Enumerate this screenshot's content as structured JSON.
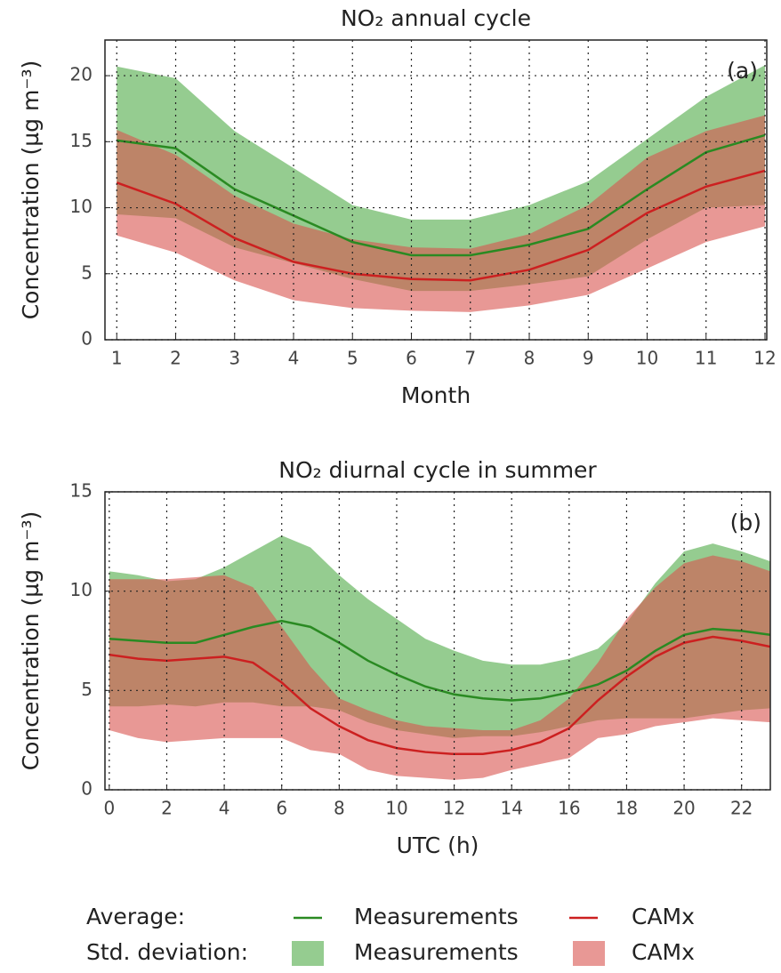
{
  "chart_data": [
    {
      "type": "line",
      "title": "NO₂ annual cycle",
      "x_label": "Month",
      "y_label": "Concentration (µg m⁻³)",
      "annotation": "(a)",
      "x": [
        1,
        2,
        3,
        4,
        5,
        6,
        7,
        8,
        9,
        10,
        11,
        12
      ],
      "xlim": [
        0.8,
        12.03
      ],
      "xticks": [
        1,
        2,
        3,
        4,
        5,
        6,
        7,
        8,
        9,
        10,
        11,
        12
      ],
      "ylim": [
        0,
        22.7
      ],
      "yticks": [
        0,
        5,
        10,
        15,
        20
      ],
      "grid": true,
      "series": [
        {
          "name": "Measurements",
          "color": "#2a8a22",
          "band_color": "#5cb055",
          "values": [
            15.1,
            14.5,
            11.4,
            9.4,
            7.4,
            6.4,
            6.4,
            7.2,
            8.4,
            11.4,
            14.2,
            15.5
          ],
          "std": [
            5.6,
            5.3,
            4.4,
            3.6,
            2.8,
            2.7,
            2.7,
            3.0,
            3.6,
            3.8,
            4.2,
            5.3
          ]
        },
        {
          "name": "CAMx",
          "color": "#cc2020",
          "band_color": "#d9534f",
          "values": [
            11.9,
            10.3,
            7.7,
            5.9,
            5.0,
            4.6,
            4.5,
            5.3,
            6.8,
            9.6,
            11.6,
            12.8
          ],
          "std": [
            4.0,
            3.7,
            3.2,
            2.9,
            2.6,
            2.4,
            2.4,
            2.7,
            3.4,
            4.2,
            4.2,
            4.2
          ]
        }
      ]
    },
    {
      "type": "line",
      "title": "NO₂ diurnal cycle in summer",
      "x_label": "UTC (h)",
      "y_label": "Concentration (µg m⁻³)",
      "annotation": "(b)",
      "x": [
        0,
        1,
        2,
        3,
        4,
        5,
        6,
        7,
        8,
        9,
        10,
        11,
        12,
        13,
        14,
        15,
        16,
        17,
        18,
        19,
        20,
        21,
        22,
        23
      ],
      "xlim": [
        -0.15,
        23
      ],
      "xticks": [
        0,
        2,
        4,
        6,
        8,
        10,
        12,
        14,
        16,
        18,
        20,
        22
      ],
      "ylim": [
        0,
        15
      ],
      "yticks": [
        0,
        5,
        10,
        15
      ],
      "grid": true,
      "series": [
        {
          "name": "Measurements",
          "color": "#2a8a22",
          "band_color": "#5cb055",
          "values": [
            7.6,
            7.5,
            7.4,
            7.4,
            7.8,
            8.2,
            8.5,
            8.2,
            7.4,
            6.5,
            5.8,
            5.2,
            4.8,
            4.6,
            4.5,
            4.6,
            4.9,
            5.3,
            6.0,
            7.0,
            7.8,
            8.1,
            8.0,
            7.8
          ],
          "std": [
            3.4,
            3.3,
            3.1,
            3.2,
            3.4,
            3.8,
            4.3,
            4.0,
            3.4,
            3.1,
            2.8,
            2.4,
            2.2,
            1.9,
            1.8,
            1.7,
            1.7,
            1.8,
            2.4,
            3.4,
            4.2,
            4.3,
            4.0,
            3.7
          ]
        },
        {
          "name": "CAMx",
          "color": "#cc2020",
          "band_color": "#d9534f",
          "values": [
            6.8,
            6.6,
            6.5,
            6.6,
            6.7,
            6.4,
            5.4,
            4.1,
            3.2,
            2.5,
            2.1,
            1.9,
            1.8,
            1.8,
            2.0,
            2.4,
            3.1,
            4.5,
            5.7,
            6.7,
            7.4,
            7.7,
            7.5,
            7.2
          ],
          "std": [
            3.8,
            4.0,
            4.1,
            4.1,
            4.1,
            3.8,
            2.8,
            2.1,
            1.4,
            1.5,
            1.4,
            1.3,
            1.3,
            1.2,
            1.0,
            1.1,
            1.5,
            1.9,
            2.9,
            3.5,
            4.0,
            4.1,
            4.0,
            3.8
          ]
        }
      ]
    }
  ],
  "legend": {
    "average_label": "Average:",
    "std_label": "Std. deviation:"
  }
}
